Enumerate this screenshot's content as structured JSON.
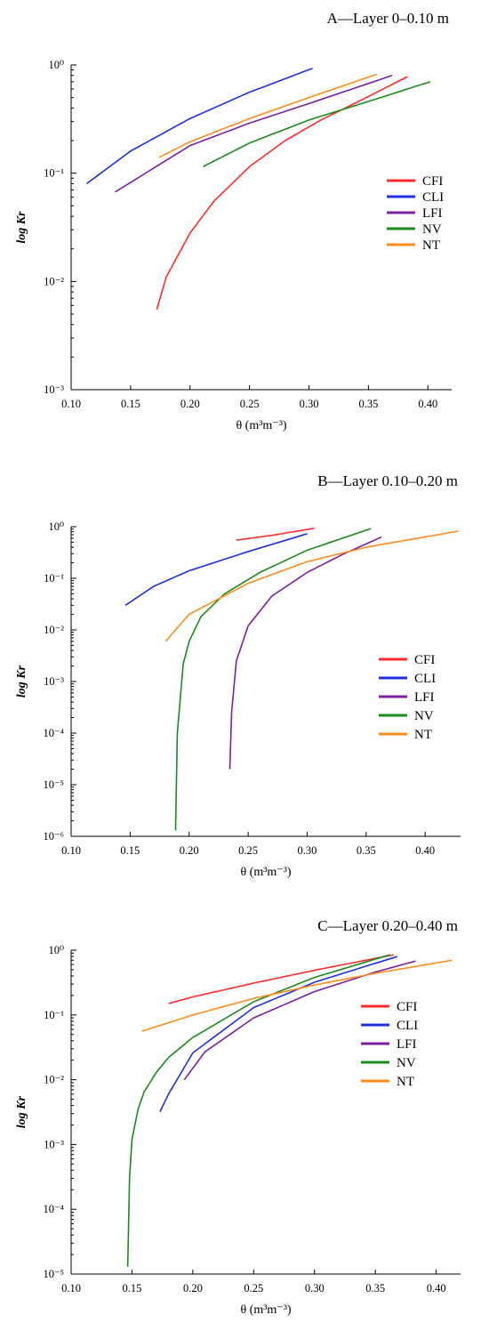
{
  "chart_data": [
    {
      "type": "line",
      "title": "A—Layer 0–0.10 m",
      "xlabel": "θ (m³m⁻³)",
      "ylabel": "log Kr",
      "x_ticks": [
        "0.10",
        "0.15",
        "0.20",
        "0.25",
        "0.30",
        "0.35",
        "0.40"
      ],
      "y_ticks": [
        "10⁻³",
        "10⁻²",
        "10⁻¹",
        "10⁰"
      ],
      "xlim": [
        0.1,
        0.42
      ],
      "ylim_log10": [
        -3,
        0
      ],
      "scale_y": "log",
      "grid": false,
      "legend_position": "right",
      "series": [
        {
          "name": "CFI",
          "color": "#ff2a2a",
          "x": [
            0.172,
            0.18,
            0.2,
            0.22,
            0.25,
            0.28,
            0.31,
            0.34,
            0.383
          ],
          "y": [
            0.0055,
            0.011,
            0.028,
            0.055,
            0.115,
            0.2,
            0.31,
            0.45,
            0.78
          ]
        },
        {
          "name": "CLI",
          "color": "#1f2fe0",
          "x": [
            0.113,
            0.15,
            0.2,
            0.25,
            0.303
          ],
          "y": [
            0.08,
            0.16,
            0.32,
            0.56,
            0.93
          ]
        },
        {
          "name": "LFI",
          "color": "#7b1fa2",
          "x": [
            0.137,
            0.2,
            0.25,
            0.3,
            0.37
          ],
          "y": [
            0.067,
            0.18,
            0.29,
            0.44,
            0.8
          ]
        },
        {
          "name": "NV",
          "color": "#1a8a1a",
          "x": [
            0.211,
            0.25,
            0.3,
            0.35,
            0.402
          ],
          "y": [
            0.115,
            0.19,
            0.31,
            0.46,
            0.7
          ]
        },
        {
          "name": "NT",
          "color": "#ff8c1a",
          "x": [
            0.174,
            0.2,
            0.25,
            0.3,
            0.357
          ],
          "y": [
            0.14,
            0.195,
            0.32,
            0.5,
            0.82
          ]
        }
      ]
    },
    {
      "type": "line",
      "title": "B—Layer 0.10–0.20 m",
      "xlabel": "θ (m³m⁻³)",
      "ylabel": "log Kr",
      "x_ticks": [
        "0.10",
        "0.15",
        "0.20",
        "0.25",
        "0.30",
        "0.35",
        "0.40"
      ],
      "y_ticks": [
        "10⁻⁶",
        "10⁻⁵",
        "10⁻⁴",
        "10⁻³",
        "10⁻²",
        "10⁻¹",
        "10⁰"
      ],
      "xlim": [
        0.1,
        0.43
      ],
      "ylim_log10": [
        -6,
        0
      ],
      "scale_y": "log",
      "grid": false,
      "legend_position": "right",
      "series": [
        {
          "name": "CFI",
          "color": "#ff2a2a",
          "x": [
            0.24,
            0.27,
            0.306
          ],
          "y": [
            0.55,
            0.68,
            0.93
          ]
        },
        {
          "name": "CLI",
          "color": "#1f2fe0",
          "x": [
            0.146,
            0.17,
            0.2,
            0.25,
            0.3
          ],
          "y": [
            0.03,
            0.07,
            0.14,
            0.33,
            0.73
          ]
        },
        {
          "name": "LFI",
          "color": "#7b1fa2",
          "x": [
            0.2345,
            0.236,
            0.24,
            0.25,
            0.27,
            0.3,
            0.33,
            0.363
          ],
          "y": [
            2e-05,
            0.00025,
            0.0025,
            0.012,
            0.045,
            0.13,
            0.29,
            0.63
          ]
        },
        {
          "name": "NV",
          "color": "#1a8a1a",
          "x": [
            0.1885,
            0.19,
            0.195,
            0.2,
            0.21,
            0.23,
            0.26,
            0.3,
            0.354
          ],
          "y": [
            1.3e-06,
            0.0001,
            0.0022,
            0.006,
            0.018,
            0.05,
            0.13,
            0.35,
            0.92
          ]
        },
        {
          "name": "NT",
          "color": "#ff8c1a",
          "x": [
            0.18,
            0.2,
            0.25,
            0.3,
            0.35,
            0.428
          ],
          "y": [
            0.006,
            0.02,
            0.08,
            0.21,
            0.4,
            0.82
          ]
        }
      ]
    },
    {
      "type": "line",
      "title": "C—Layer 0.20–0.40 m",
      "xlabel": "θ (m³m⁻³)",
      "ylabel": "log Kr",
      "x_ticks": [
        "0.10",
        "0.15",
        "0.20",
        "0.25",
        "0.30",
        "0.35",
        "0.40"
      ],
      "y_ticks": [
        "10⁻⁵",
        "10⁻⁴",
        "10⁻³",
        "10⁻²",
        "10⁻¹",
        "10⁰"
      ],
      "xlim": [
        0.1,
        0.42
      ],
      "ylim_log10": [
        -5,
        0
      ],
      "scale_y": "log",
      "grid": false,
      "legend_position": "right",
      "series": [
        {
          "name": "CFI",
          "color": "#ff2a2a",
          "x": [
            0.18,
            0.2,
            0.25,
            0.3,
            0.365
          ],
          "y": [
            0.15,
            0.19,
            0.31,
            0.49,
            0.85
          ]
        },
        {
          "name": "CLI",
          "color": "#1f2fe0",
          "x": [
            0.173,
            0.18,
            0.2,
            0.25,
            0.3,
            0.368
          ],
          "y": [
            0.0032,
            0.006,
            0.026,
            0.13,
            0.32,
            0.8
          ]
        },
        {
          "name": "LFI",
          "color": "#7b1fa2",
          "x": [
            0.193,
            0.21,
            0.25,
            0.3,
            0.35,
            0.383
          ],
          "y": [
            0.01,
            0.027,
            0.09,
            0.23,
            0.46,
            0.68
          ]
        },
        {
          "name": "NV",
          "color": "#1a8a1a",
          "x": [
            0.1465,
            0.148,
            0.15,
            0.155,
            0.16,
            0.17,
            0.18,
            0.2,
            0.25,
            0.3,
            0.362
          ],
          "y": [
            1.3e-05,
            0.0003,
            0.0012,
            0.0035,
            0.0065,
            0.013,
            0.022,
            0.045,
            0.16,
            0.38,
            0.85
          ]
        },
        {
          "name": "NT",
          "color": "#ff8c1a",
          "x": [
            0.158,
            0.2,
            0.25,
            0.3,
            0.35,
            0.413
          ],
          "y": [
            0.056,
            0.1,
            0.18,
            0.29,
            0.44,
            0.7
          ]
        }
      ]
    }
  ]
}
